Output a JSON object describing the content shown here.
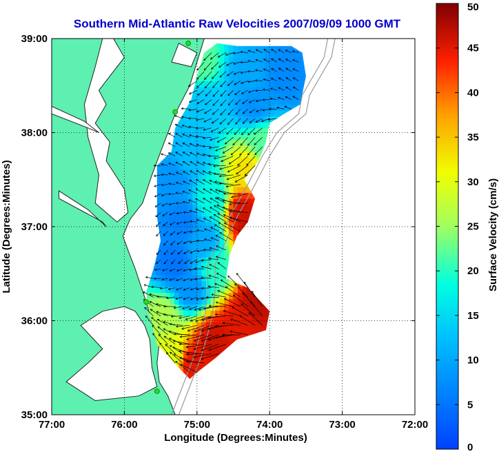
{
  "title": "Southern Mid-Atlantic Raw Velocities 2007/09/09 1000 GMT",
  "colors": {
    "title": "#0000cc",
    "land": "#5ef0b0",
    "sea": "#ffffff",
    "coastline": "#222222",
    "bathymetry": "#999999",
    "station": "#22dd22",
    "vector": "#000000"
  },
  "map": {
    "xlabel": "Longitude (Degrees:Minutes)",
    "ylabel": "Latitude (Degrees:Minutes)",
    "lon_range": [
      -77,
      -72
    ],
    "lat_range": [
      35,
      39
    ],
    "lon_ticks": [
      {
        "value": -77,
        "label": "77:00"
      },
      {
        "value": -76,
        "label": "76:00"
      },
      {
        "value": -75,
        "label": "75:00"
      },
      {
        "value": -74,
        "label": "74:00"
      },
      {
        "value": -73,
        "label": "73:00"
      },
      {
        "value": -72,
        "label": "72:00"
      }
    ],
    "lat_ticks": [
      {
        "value": 35,
        "label": "35:00"
      },
      {
        "value": 36,
        "label": "36:00"
      },
      {
        "value": 37,
        "label": "37:00"
      },
      {
        "value": 38,
        "label": "38:00"
      },
      {
        "value": 39,
        "label": "39:00"
      }
    ],
    "grid": "dotted",
    "land_polygon_lonlat": [
      [
        -77,
        39
      ],
      [
        -74.9,
        39
      ],
      [
        -75.1,
        38.5
      ],
      [
        -75.3,
        38.2
      ],
      [
        -75.45,
        37.9
      ],
      [
        -75.62,
        37.55
      ],
      [
        -75.75,
        37.25
      ],
      [
        -75.92,
        37.08
      ],
      [
        -76.02,
        36.9
      ],
      [
        -75.95,
        36.75
      ],
      [
        -75.85,
        36.55
      ],
      [
        -75.72,
        36.25
      ],
      [
        -75.62,
        36.0
      ],
      [
        -75.52,
        35.75
      ],
      [
        -75.55,
        35.55
      ],
      [
        -75.52,
        35.35
      ],
      [
        -75.4,
        35.2
      ],
      [
        -75.3,
        35.0
      ],
      [
        -77,
        35
      ]
    ],
    "water_bodies_lonlat": [
      [
        [
          -76.15,
          39
        ],
        [
          -76.0,
          38.8
        ],
        [
          -76.2,
          38.6
        ],
        [
          -76.35,
          38.45
        ],
        [
          -76.25,
          38.3
        ],
        [
          -76.4,
          38.1
        ],
        [
          -76.2,
          37.9
        ],
        [
          -76.25,
          37.7
        ],
        [
          -76.0,
          37.4
        ],
        [
          -75.95,
          37.15
        ],
        [
          -76.1,
          37.05
        ],
        [
          -76.4,
          37.25
        ],
        [
          -76.35,
          37.55
        ],
        [
          -76.5,
          37.95
        ],
        [
          -76.55,
          38.3
        ],
        [
          -76.4,
          38.7
        ],
        [
          -76.3,
          39
        ]
      ],
      [
        [
          -77,
          38.2
        ],
        [
          -76.5,
          38.05
        ],
        [
          -76.35,
          38.0
        ],
        [
          -76.55,
          38.12
        ],
        [
          -77,
          38.28
        ]
      ],
      [
        [
          -76.9,
          37.3
        ],
        [
          -76.3,
          37.05
        ],
        [
          -76.25,
          37.0
        ],
        [
          -76.5,
          37.18
        ],
        [
          -76.9,
          37.38
        ]
      ],
      [
        [
          -76.0,
          36.15
        ],
        [
          -75.85,
          36.1
        ],
        [
          -75.72,
          35.95
        ],
        [
          -75.65,
          35.8
        ],
        [
          -75.62,
          35.5
        ],
        [
          -75.55,
          35.3
        ],
        [
          -75.8,
          35.2
        ],
        [
          -76.4,
          35.15
        ],
        [
          -76.8,
          35.35
        ],
        [
          -76.5,
          35.55
        ],
        [
          -76.3,
          35.7
        ],
        [
          -76.6,
          35.95
        ],
        [
          -76.3,
          36.1
        ]
      ],
      [
        [
          -75.25,
          38.95
        ],
        [
          -75.0,
          38.85
        ],
        [
          -75.08,
          38.7
        ],
        [
          -75.35,
          38.75
        ]
      ]
    ],
    "bathymetry_lines_lonlat": [
      [
        [
          -73.2,
          39
        ],
        [
          -73.25,
          38.8
        ],
        [
          -73.4,
          38.6
        ],
        [
          -73.55,
          38.4
        ],
        [
          -73.6,
          38.2
        ],
        [
          -73.9,
          38.0
        ],
        [
          -74.1,
          37.75
        ],
        [
          -74.3,
          37.45
        ],
        [
          -74.55,
          37.1
        ],
        [
          -74.7,
          36.85
        ],
        [
          -74.85,
          36.6
        ],
        [
          -74.85,
          36.3
        ],
        [
          -74.9,
          36.0
        ],
        [
          -75.05,
          35.6
        ],
        [
          -75.2,
          35.3
        ],
        [
          -75.35,
          35.0
        ]
      ],
      [
        [
          -73.1,
          39
        ],
        [
          -73.15,
          38.8
        ],
        [
          -73.3,
          38.6
        ],
        [
          -73.45,
          38.4
        ],
        [
          -73.5,
          38.2
        ],
        [
          -73.8,
          38.0
        ],
        [
          -74.0,
          37.75
        ],
        [
          -74.2,
          37.45
        ],
        [
          -74.45,
          37.1
        ],
        [
          -74.6,
          36.85
        ],
        [
          -74.75,
          36.6
        ],
        [
          -74.75,
          36.3
        ],
        [
          -74.8,
          36.0
        ],
        [
          -74.95,
          35.6
        ],
        [
          -75.1,
          35.3
        ],
        [
          -75.25,
          35.0
        ]
      ]
    ],
    "stations_lonlat": [
      [
        -75.12,
        38.95
      ],
      [
        -75.3,
        38.22
      ],
      [
        -75.7,
        36.2
      ],
      [
        -75.55,
        35.25
      ]
    ]
  },
  "chart_data": {
    "type": "heatmap",
    "title": "Southern Mid-Atlantic Raw Velocities 2007/09/09 1000 GMT",
    "xlabel": "Longitude (Degrees:Minutes)",
    "ylabel": "Latitude (Degrees:Minutes)",
    "xlim": [
      -77,
      -72
    ],
    "ylim": [
      35,
      39
    ],
    "colorbar": {
      "label": "Surface Velocity (cm/s)",
      "range": [
        0,
        50
      ],
      "ticks": [
        0,
        5,
        10,
        15,
        20,
        25,
        30,
        35,
        40,
        45,
        50
      ],
      "colormap": "jet"
    },
    "grid_step_deg": 0.0625,
    "coverage_outline_lonlat": [
      [
        -74.72,
        38.95
      ],
      [
        -74.45,
        38.92
      ],
      [
        -74.0,
        38.92
      ],
      [
        -73.7,
        38.92
      ],
      [
        -73.55,
        38.85
      ],
      [
        -73.5,
        38.6
      ],
      [
        -73.58,
        38.3
      ],
      [
        -73.8,
        38.2
      ],
      [
        -74.0,
        38.1
      ],
      [
        -74.05,
        37.9
      ],
      [
        -74.15,
        37.7
      ],
      [
        -74.35,
        37.5
      ],
      [
        -74.2,
        37.3
      ],
      [
        -74.3,
        37.05
      ],
      [
        -74.45,
        36.9
      ],
      [
        -74.55,
        36.7
      ],
      [
        -74.6,
        36.45
      ],
      [
        -74.3,
        36.35
      ],
      [
        -74.0,
        36.1
      ],
      [
        -74.05,
        35.9
      ],
      [
        -74.45,
        35.8
      ],
      [
        -74.75,
        35.6
      ],
      [
        -75.0,
        35.45
      ],
      [
        -75.1,
        35.38
      ],
      [
        -75.25,
        35.5
      ],
      [
        -75.55,
        35.75
      ],
      [
        -75.65,
        36.05
      ],
      [
        -75.7,
        36.3
      ],
      [
        -75.6,
        36.55
      ],
      [
        -75.5,
        36.85
      ],
      [
        -75.55,
        37.1
      ],
      [
        -75.55,
        37.4
      ],
      [
        -75.55,
        37.65
      ],
      [
        -75.35,
        37.8
      ],
      [
        -75.3,
        38.05
      ],
      [
        -75.08,
        38.35
      ],
      [
        -75.0,
        38.6
      ],
      [
        -74.9,
        38.85
      ]
    ],
    "speed_centers": [
      {
        "lon": -74.95,
        "lat": 38.75,
        "speed": 22
      },
      {
        "lon": -74.3,
        "lat": 38.6,
        "speed": 10
      },
      {
        "lon": -73.8,
        "lat": 38.6,
        "speed": 7
      },
      {
        "lon": -74.2,
        "lat": 38.3,
        "speed": 8
      },
      {
        "lon": -74.9,
        "lat": 38.3,
        "speed": 13
      },
      {
        "lon": -74.1,
        "lat": 37.9,
        "speed": 22
      },
      {
        "lon": -74.3,
        "lat": 37.6,
        "speed": 33
      },
      {
        "lon": -75.1,
        "lat": 37.75,
        "speed": 12
      },
      {
        "lon": -75.3,
        "lat": 37.5,
        "speed": 8
      },
      {
        "lon": -74.8,
        "lat": 37.3,
        "speed": 18
      },
      {
        "lon": -74.35,
        "lat": 37.15,
        "speed": 46
      },
      {
        "lon": -74.25,
        "lat": 36.95,
        "speed": 47
      },
      {
        "lon": -75.2,
        "lat": 37.05,
        "speed": 6
      },
      {
        "lon": -74.9,
        "lat": 36.85,
        "speed": 10
      },
      {
        "lon": -75.3,
        "lat": 36.6,
        "speed": 5
      },
      {
        "lon": -74.75,
        "lat": 36.55,
        "speed": 20
      },
      {
        "lon": -75.1,
        "lat": 36.35,
        "speed": 8
      },
      {
        "lon": -74.2,
        "lat": 36.2,
        "speed": 47
      },
      {
        "lon": -74.4,
        "lat": 36.0,
        "speed": 45
      },
      {
        "lon": -75.45,
        "lat": 36.05,
        "speed": 26
      },
      {
        "lon": -74.75,
        "lat": 35.8,
        "speed": 46
      },
      {
        "lon": -75.05,
        "lat": 35.55,
        "speed": 45
      },
      {
        "lon": -75.35,
        "lat": 35.65,
        "speed": 30
      }
    ]
  }
}
